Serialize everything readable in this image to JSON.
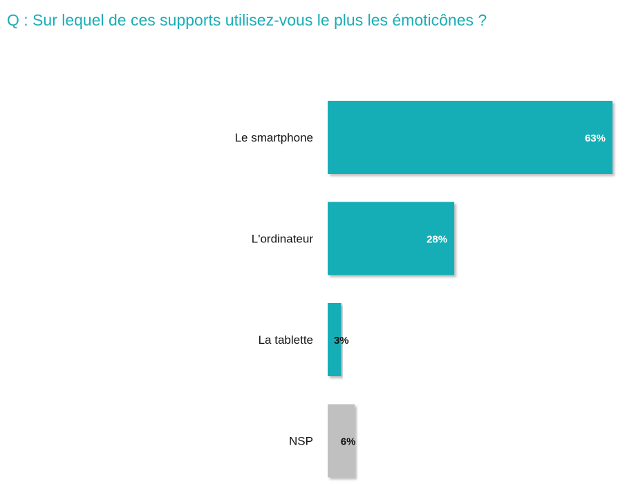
{
  "question": "Q : Sur lequel de ces supports utilisez-vous le plus les émoticônes ?",
  "chart_data": {
    "type": "bar",
    "orientation": "horizontal",
    "title": "",
    "xlabel": "",
    "ylabel": "",
    "categories": [
      "Le smartphone",
      "L'ordinateur",
      "La tablette",
      "NSP"
    ],
    "values": [
      63,
      28,
      3,
      6
    ],
    "value_labels": [
      "63%",
      "28%",
      "3%",
      "6%"
    ],
    "unit": "%",
    "xlim": [
      0,
      63
    ],
    "grid": false,
    "legend": "none",
    "bar_colors": [
      "#18aeb6",
      "#18aeb6",
      "#18aeb6",
      "#c0c0c0"
    ],
    "value_label_colors": [
      "#ffffff",
      "#ffffff",
      "#111111",
      "#111111"
    ]
  },
  "colors": {
    "title": "#1aadb5",
    "accent": "#18aeb6",
    "neutral": "#c0c0c0",
    "shadow": "#9a9a9a"
  }
}
